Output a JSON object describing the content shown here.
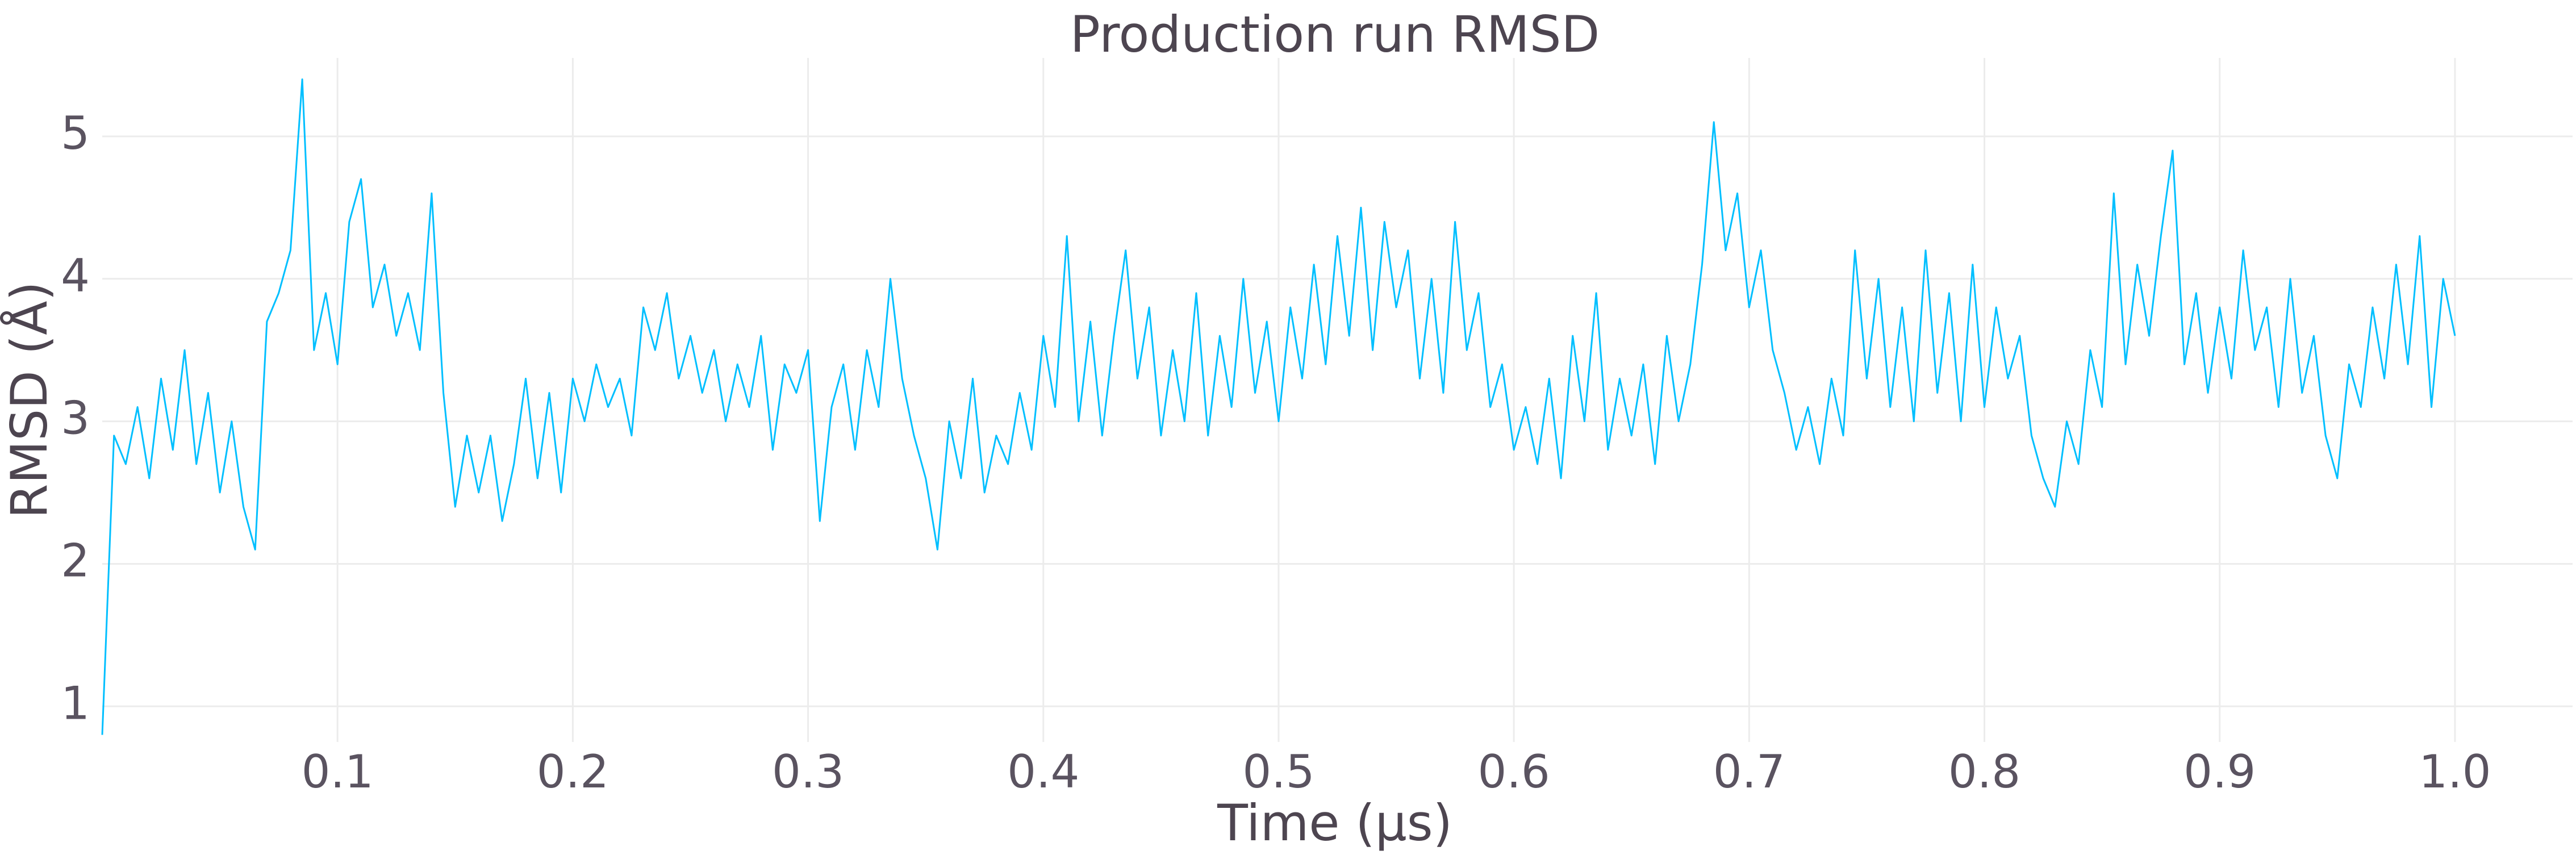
{
  "chart_data": {
    "type": "line",
    "title": "Production run RMSD",
    "x_label": "Time (μs)",
    "y_label": "RMSD (Å)",
    "color": "#00bfff",
    "grid": true,
    "xlim": [
      0,
      1.05
    ],
    "ylim": [
      0.75,
      5.55
    ],
    "xticks": [
      0.1,
      0.2,
      0.3,
      0.4,
      0.5,
      0.6,
      0.7,
      0.8,
      0.9,
      {
        "value": 1,
        "label": "1.0"
      }
    ],
    "yticks": [
      1,
      2,
      3,
      4,
      5
    ],
    "x": [
      0,
      0.005,
      0.01,
      0.015,
      0.02,
      0.025,
      0.03,
      0.035,
      0.04,
      0.045,
      0.05,
      0.055,
      0.06,
      0.065,
      0.07,
      0.075,
      0.08,
      0.085,
      0.09,
      0.095,
      0.1,
      0.105,
      0.11,
      0.115,
      0.12,
      0.125,
      0.13,
      0.135,
      0.14,
      0.145,
      0.15,
      0.155,
      0.16,
      0.165,
      0.17,
      0.175,
      0.18,
      0.185,
      0.19,
      0.195,
      0.2,
      0.205,
      0.21,
      0.215,
      0.22,
      0.225,
      0.23,
      0.235,
      0.24,
      0.245,
      0.25,
      0.255,
      0.26,
      0.265,
      0.27,
      0.275,
      0.28,
      0.285,
      0.29,
      0.295,
      0.3,
      0.305,
      0.31,
      0.315,
      0.32,
      0.325,
      0.33,
      0.335,
      0.34,
      0.345,
      0.35,
      0.355,
      0.36,
      0.365,
      0.37,
      0.375,
      0.38,
      0.385,
      0.39,
      0.395,
      0.4,
      0.405,
      0.41,
      0.415,
      0.42,
      0.425,
      0.43,
      0.435,
      0.44,
      0.445,
      0.45,
      0.455,
      0.46,
      0.465,
      0.47,
      0.475,
      0.48,
      0.485,
      0.49,
      0.495,
      0.5,
      0.505,
      0.51,
      0.515,
      0.52,
      0.525,
      0.53,
      0.535,
      0.54,
      0.545,
      0.55,
      0.555,
      0.56,
      0.565,
      0.57,
      0.575,
      0.58,
      0.585,
      0.59,
      0.595,
      0.6,
      0.605,
      0.61,
      0.615,
      0.62,
      0.625,
      0.63,
      0.635,
      0.64,
      0.645,
      0.65,
      0.655,
      0.66,
      0.665,
      0.67,
      0.675,
      0.68,
      0.685,
      0.69,
      0.695,
      0.7,
      0.705,
      0.71,
      0.715,
      0.72,
      0.725,
      0.73,
      0.735,
      0.74,
      0.745,
      0.75,
      0.755,
      0.76,
      0.765,
      0.77,
      0.775,
      0.78,
      0.785,
      0.79,
      0.795,
      0.8,
      0.805,
      0.81,
      0.815,
      0.82,
      0.825,
      0.83,
      0.835,
      0.84,
      0.845,
      0.85,
      0.855,
      0.86,
      0.865,
      0.87,
      0.875,
      0.88,
      0.885,
      0.89,
      0.895,
      0.9,
      0.905,
      0.91,
      0.915,
      0.92,
      0.925,
      0.93,
      0.935,
      0.94,
      0.945,
      0.95,
      0.955,
      0.96,
      0.965,
      0.97,
      0.975,
      0.98,
      0.985,
      0.99,
      0.995,
      1.0
    ],
    "values": [
      0.8,
      2.9,
      2.7,
      3.1,
      2.6,
      3.3,
      2.8,
      3.5,
      2.7,
      3.2,
      2.5,
      3.0,
      2.4,
      2.1,
      3.7,
      3.9,
      4.2,
      5.4,
      3.5,
      3.9,
      3.4,
      4.4,
      4.7,
      3.8,
      4.1,
      3.6,
      3.9,
      3.5,
      4.6,
      3.2,
      2.4,
      2.9,
      2.5,
      2.9,
      2.3,
      2.7,
      3.3,
      2.6,
      3.2,
      2.5,
      3.3,
      3.0,
      3.4,
      3.1,
      3.3,
      2.9,
      3.8,
      3.5,
      3.9,
      3.3,
      3.6,
      3.2,
      3.5,
      3.0,
      3.4,
      3.1,
      3.6,
      2.8,
      3.4,
      3.2,
      3.5,
      2.3,
      3.1,
      3.4,
      2.8,
      3.5,
      3.1,
      4.0,
      3.3,
      2.9,
      2.6,
      2.1,
      3.0,
      2.6,
      3.3,
      2.5,
      2.9,
      2.7,
      3.2,
      2.8,
      3.6,
      3.1,
      4.3,
      3.0,
      3.7,
      2.9,
      3.6,
      4.2,
      3.3,
      3.8,
      2.9,
      3.5,
      3.0,
      3.9,
      2.9,
      3.6,
      3.1,
      4.0,
      3.2,
      3.7,
      3.0,
      3.8,
      3.3,
      4.1,
      3.4,
      4.3,
      3.6,
      4.5,
      3.5,
      4.4,
      3.8,
      4.2,
      3.3,
      4.0,
      3.2,
      4.4,
      3.5,
      3.9,
      3.1,
      3.4,
      2.8,
      3.1,
      2.7,
      3.3,
      2.6,
      3.6,
      3.0,
      3.9,
      2.8,
      3.3,
      2.9,
      3.4,
      2.7,
      3.6,
      3.0,
      3.4,
      4.1,
      5.1,
      4.2,
      4.6,
      3.8,
      4.2,
      3.5,
      3.2,
      2.8,
      3.1,
      2.7,
      3.3,
      2.9,
      4.2,
      3.3,
      4.0,
      3.1,
      3.8,
      3.0,
      4.2,
      3.2,
      3.9,
      3.0,
      4.1,
      3.1,
      3.8,
      3.3,
      3.6,
      2.9,
      2.6,
      2.4,
      3.0,
      2.7,
      3.5,
      3.1,
      4.6,
      3.4,
      4.1,
      3.6,
      4.3,
      4.9,
      3.4,
      3.9,
      3.2,
      3.8,
      3.3,
      4.2,
      3.5,
      3.8,
      3.1,
      4.0,
      3.2,
      3.6,
      2.9,
      2.6,
      3.4,
      3.1,
      3.8,
      3.3,
      4.1,
      3.4,
      4.3,
      3.1,
      4.0,
      3.6
    ]
  }
}
